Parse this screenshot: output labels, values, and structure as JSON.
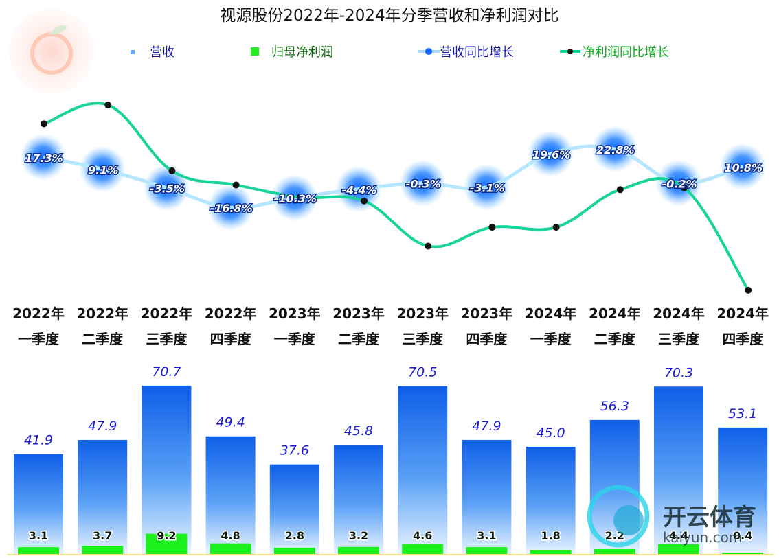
{
  "chart_data": {
    "type": "bar",
    "title": "视源股份2022年-2024年分季营收和净利润对比",
    "legend": [
      {
        "label": "营收",
        "color": "#6aa8ff"
      },
      {
        "label": "归母净利润",
        "color": "#22ee22"
      },
      {
        "label": "营收同比增长",
        "color": "#7fd8ff"
      },
      {
        "label": "净利润同比增长",
        "color": "#18d49a"
      }
    ],
    "legend_position": "top",
    "categories": [
      {
        "year": "2022年",
        "quarter": "一季度"
      },
      {
        "year": "2022年",
        "quarter": "二季度"
      },
      {
        "year": "2022年",
        "quarter": "三季度"
      },
      {
        "year": "2022年",
        "quarter": "四季度"
      },
      {
        "year": "2023年",
        "quarter": "一季度"
      },
      {
        "year": "2023年",
        "quarter": "二季度"
      },
      {
        "year": "2023年",
        "quarter": "三季度"
      },
      {
        "year": "2023年",
        "quarter": "四季度"
      },
      {
        "year": "2024年",
        "quarter": "一季度"
      },
      {
        "year": "2024年",
        "quarter": "二季度"
      },
      {
        "year": "2024年",
        "quarter": "三季度"
      },
      {
        "year": "2024年",
        "quarter": "四季度"
      }
    ],
    "series": [
      {
        "name": "营收",
        "type": "bar",
        "color": "#1a6ef0",
        "values": [
          41.9,
          47.9,
          70.7,
          49.4,
          37.6,
          45.8,
          70.5,
          47.9,
          45.0,
          56.3,
          70.3,
          53.1
        ]
      },
      {
        "name": "归母净利润",
        "type": "bar",
        "color": "#1cf01c",
        "values": [
          3.1,
          3.7,
          9.2,
          4.8,
          2.8,
          3.2,
          4.6,
          3.1,
          1.8,
          2.2,
          4.4,
          0.4
        ]
      },
      {
        "name": "营收同比增长",
        "type": "line",
        "color": "#9fdcff",
        "unit": "%",
        "values": [
          17.3,
          9.1,
          -3.5,
          -16.8,
          -10.3,
          -4.4,
          -0.3,
          -3.1,
          19.6,
          22.8,
          -0.2,
          10.8
        ]
      },
      {
        "name": "净利润同比增长",
        "type": "line",
        "color": "#18d49a",
        "unit": "%",
        "values": [
          80,
          100,
          30,
          15,
          2,
          -2,
          -50,
          -30,
          -30,
          10,
          12,
          -97
        ]
      }
    ],
    "grid": false
  },
  "watermark": {
    "text": "开云体育",
    "subtext": "kaiyun.com"
  }
}
